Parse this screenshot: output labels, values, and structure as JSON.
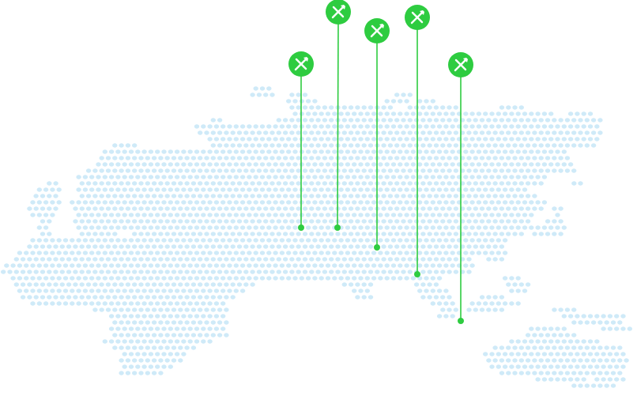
{
  "map": {
    "dot_color": "#cfeaf8",
    "pin_color": "#2ecc40",
    "pin_icon_color": "#ffffff"
  },
  "markers": [
    {
      "id": 1,
      "icon": "crossed-tools-icon"
    },
    {
      "id": 2,
      "icon": "crossed-tools-icon"
    },
    {
      "id": 3,
      "icon": "crossed-tools-icon"
    },
    {
      "id": 4,
      "icon": "crossed-tools-icon"
    },
    {
      "id": 5,
      "icon": "crossed-tools-icon"
    }
  ]
}
